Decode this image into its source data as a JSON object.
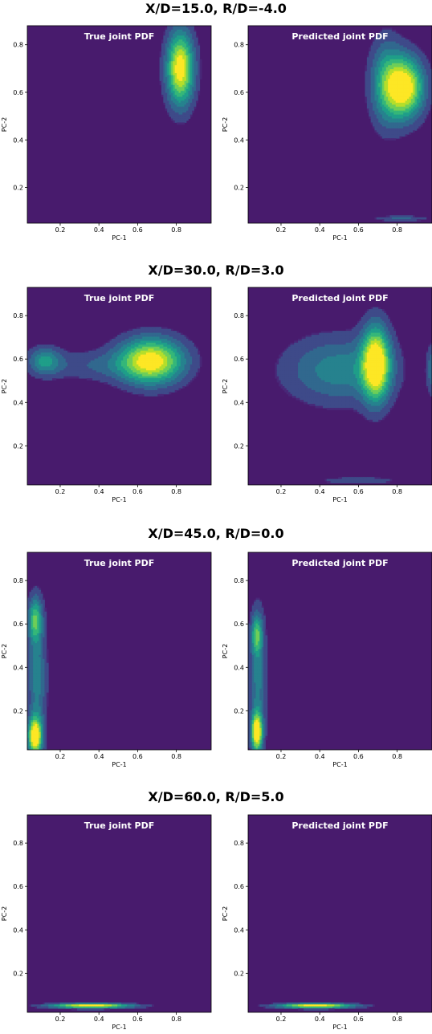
{
  "colors": {
    "viridis": [
      "#440154",
      "#482878",
      "#3e4a89",
      "#31688e",
      "#26828e",
      "#1f9e89",
      "#35b779",
      "#6ece58",
      "#b5de2b",
      "#fde725"
    ],
    "background": "#481b6d"
  },
  "chart_data": [
    {
      "type": "heatmap",
      "title": "X/D=15.0, R/D=-4.0",
      "panels": [
        {
          "title": "True joint PDF",
          "xlabel": "PC-1",
          "ylabel": "PC-2",
          "xlim": [
            0.03,
            0.98
          ],
          "ylim": [
            0.05,
            0.88
          ],
          "xticks": [
            0.2,
            0.4,
            0.6,
            0.8
          ],
          "yticks": [
            {
              "v": 0.2,
              "t": "0.2"
            },
            {
              "v": 0.4,
              "t": "0.4"
            },
            {
              "v": 0.6,
              "t": "0.6"
            },
            {
              "v": 0.8,
              "t": "0.8"
            }
          ],
          "peaks": [
            {
              "x": 0.82,
              "y": 0.7,
              "sx": 0.05,
              "sy": 0.11,
              "a": 1.0
            }
          ]
        },
        {
          "title": "Predicted joint PDF",
          "xlabel": "PC-1",
          "ylabel": "PC-2",
          "xlim": [
            0.03,
            0.98
          ],
          "ylim": [
            0.05,
            0.88
          ],
          "xticks": [
            0.2,
            0.4,
            0.6,
            0.8
          ],
          "yticks": [
            {
              "v": 0.2,
              "t": "0.2"
            },
            {
              "v": 0.4,
              "t": "0.4"
            },
            {
              "v": 0.6,
              "t": "0.6"
            },
            {
              "v": 0.8,
              "t": "0.8"
            }
          ],
          "peaks": [
            {
              "x": 0.84,
              "y": 0.62,
              "sx": 0.07,
              "sy": 0.09,
              "a": 1.0
            },
            {
              "x": 0.74,
              "y": 0.64,
              "sx": 0.06,
              "sy": 0.13,
              "a": 0.45
            },
            {
              "x": 0.82,
              "y": 0.07,
              "sx": 0.1,
              "sy": 0.008,
              "a": 0.25
            }
          ]
        }
      ]
    },
    {
      "type": "heatmap",
      "title": "X/D=30.0, R/D=3.0",
      "panels": [
        {
          "title": "True joint PDF",
          "xlabel": "PC-1",
          "ylabel": "PC-2",
          "xlim": [
            0.03,
            0.98
          ],
          "ylim": [
            0.02,
            0.93
          ],
          "xticks": [
            0.2,
            0.4,
            0.6,
            0.8
          ],
          "yticks": [
            {
              "v": 0.2,
              "t": "0.2"
            },
            {
              "v": 0.4,
              "t": "0.4"
            },
            {
              "v": 0.6,
              "t": "0.6"
            },
            {
              "v": 0.8,
              "t": "0.8"
            }
          ],
          "peaks": [
            {
              "x": 0.67,
              "y": 0.59,
              "sx": 0.12,
              "sy": 0.075,
              "a": 1.0
            },
            {
              "x": 0.12,
              "y": 0.59,
              "sx": 0.06,
              "sy": 0.045,
              "a": 0.45
            },
            {
              "x": 0.35,
              "y": 0.57,
              "sx": 0.16,
              "sy": 0.05,
              "a": 0.2
            }
          ]
        },
        {
          "title": "Predicted joint PDF",
          "xlabel": "PC-1",
          "ylabel": "PC-2",
          "xlim": [
            0.03,
            0.98
          ],
          "ylim": [
            0.02,
            0.93
          ],
          "xticks": [
            0.2,
            0.4,
            0.6,
            0.8
          ],
          "yticks": [
            {
              "v": 0.2,
              "t": "0.2"
            },
            {
              "v": 0.4,
              "t": "0.4"
            },
            {
              "v": 0.6,
              "t": "0.6"
            },
            {
              "v": 0.8,
              "t": "0.8"
            }
          ],
          "peaks": [
            {
              "x": 0.69,
              "y": 0.58,
              "sx": 0.05,
              "sy": 0.12,
              "a": 1.0
            },
            {
              "x": 0.5,
              "y": 0.55,
              "sx": 0.2,
              "sy": 0.11,
              "a": 0.4
            },
            {
              "x": 0.6,
              "y": 0.04,
              "sx": 0.14,
              "sy": 0.012,
              "a": 0.22
            },
            {
              "x": 0.98,
              "y": 0.55,
              "sx": 0.02,
              "sy": 0.08,
              "a": 0.3
            }
          ]
        }
      ]
    },
    {
      "type": "heatmap",
      "title": "X/D=45.0, R/D=0.0",
      "panels": [
        {
          "title": "True joint PDF",
          "xlabel": "PC-1",
          "ylabel": "PC-2",
          "xlim": [
            0.03,
            0.98
          ],
          "ylim": [
            0.02,
            0.93
          ],
          "xticks": [
            0.2,
            0.4,
            0.6,
            0.8
          ],
          "yticks": [
            {
              "v": 0.2,
              "t": "0.2"
            },
            {
              "v": 0.4,
              "t": "0.4"
            },
            {
              "v": 0.6,
              "t": "0.6"
            },
            {
              "v": 0.8,
              "t": "0.8"
            }
          ],
          "peaks": [
            {
              "x": 0.07,
              "y": 0.08,
              "sx": 0.025,
              "sy": 0.06,
              "a": 1.0
            },
            {
              "x": 0.07,
              "y": 0.62,
              "sx": 0.025,
              "sy": 0.07,
              "a": 0.55
            },
            {
              "x": 0.08,
              "y": 0.35,
              "sx": 0.035,
              "sy": 0.22,
              "a": 0.38
            }
          ]
        },
        {
          "title": "Predicted joint PDF",
          "xlabel": "PC-1",
          "ylabel": "PC-2",
          "xlim": [
            0.03,
            0.98
          ],
          "ylim": [
            0.02,
            0.93
          ],
          "xticks": [
            0.2,
            0.4,
            0.6,
            0.8
          ],
          "yticks": [
            {
              "v": 0.2,
              "t": "0.2"
            },
            {
              "v": 0.4,
              "t": "0.4"
            },
            {
              "v": 0.6,
              "t": "0.6"
            },
            {
              "v": 0.8,
              "t": "0.8"
            }
          ],
          "peaks": [
            {
              "x": 0.075,
              "y": 0.1,
              "sx": 0.02,
              "sy": 0.06,
              "a": 1.0
            },
            {
              "x": 0.075,
              "y": 0.55,
              "sx": 0.02,
              "sy": 0.06,
              "a": 0.5
            },
            {
              "x": 0.08,
              "y": 0.35,
              "sx": 0.03,
              "sy": 0.22,
              "a": 0.38
            }
          ]
        }
      ]
    },
    {
      "type": "heatmap",
      "title": "X/D=60.0, R/D=5.0",
      "panels": [
        {
          "title": "True joint PDF",
          "xlabel": "PC-1",
          "ylabel": "PC-2",
          "xlim": [
            0.03,
            0.98
          ],
          "ylim": [
            0.02,
            0.93
          ],
          "xticks": [
            0.2,
            0.4,
            0.6,
            0.8
          ],
          "yticks": [
            {
              "v": 0.2,
              "t": "0.2"
            },
            {
              "v": 0.4,
              "t": "0.4"
            },
            {
              "v": 0.6,
              "t": "0.6"
            },
            {
              "v": 0.8,
              "t": "0.8"
            }
          ],
          "peaks": [
            {
              "x": 0.36,
              "y": 0.05,
              "sx": 0.15,
              "sy": 0.008,
              "a": 1.0
            }
          ]
        },
        {
          "title": "Predicted joint PDF",
          "xlabel": "PC-1",
          "ylabel": "PC-2",
          "xlim": [
            0.03,
            0.98
          ],
          "ylim": [
            0.02,
            0.93
          ],
          "xticks": [
            0.2,
            0.4,
            0.6,
            0.8
          ],
          "yticks": [
            {
              "v": 0.2,
              "t": "0.2"
            },
            {
              "v": 0.4,
              "t": "0.4"
            },
            {
              "v": 0.6,
              "t": "0.6"
            },
            {
              "v": 0.8,
              "t": "0.8"
            }
          ],
          "peaks": [
            {
              "x": 0.38,
              "y": 0.05,
              "sx": 0.14,
              "sy": 0.008,
              "a": 1.0
            }
          ]
        }
      ]
    }
  ]
}
